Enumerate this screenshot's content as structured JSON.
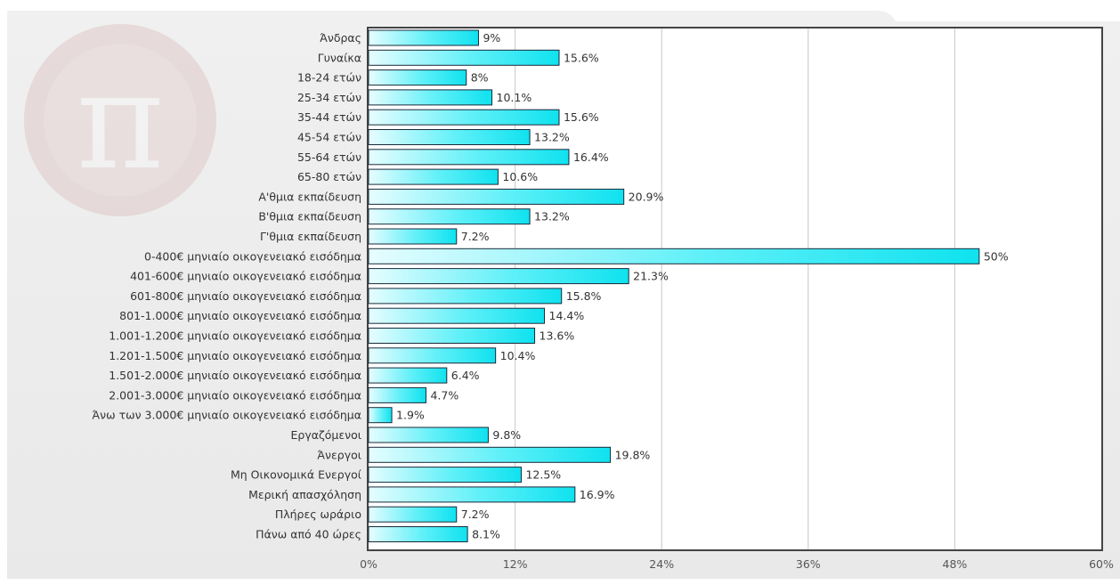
{
  "chart_data": {
    "type": "bar",
    "orientation": "horizontal",
    "title": "",
    "xlabel": "",
    "ylabel": "",
    "xlim": [
      0,
      60
    ],
    "ticks": [
      0,
      12,
      24,
      36,
      48,
      60
    ],
    "tick_suffix": "%",
    "grid": true,
    "bar_color": "#19e6f2",
    "bar_highlight": "#e4fdff",
    "categories": [
      "Άνδρας",
      "Γυναίκα",
      "18-24 ετών",
      "25-34 ετών",
      "35-44 ετών",
      "45-54 ετών",
      "55-64 ετών",
      "65-80 ετών",
      "Α'θμια εκπαίδευση",
      "Β'θμια εκπαίδευση",
      "Γ'θμια εκπαίδευση",
      "0-400€ μηνιαίο οικογενειακό εισόδημα",
      "401-600€ μηνιαίο οικογενειακό εισόδημα",
      "601-800€ μηνιαίο οικογενειακό εισόδημα",
      "801-1.000€ μηνιαίο οικογενειακό εισόδημα",
      "1.001-1.200€ μηνιαίο οικογενειακό εισόδημα",
      "1.201-1.500€ μηνιαίο οικογενειακό εισόδημα",
      "1.501-2.000€ μηνιαίο οικογενειακό εισόδημα",
      "2.001-3.000€ μηνιαίο οικογενειακό εισόδημα",
      "Άνω των 3.000€ μηνιαίο οικογενειακό εισόδημα",
      "Εργαζόμενοι",
      "Άνεργοι",
      "Μη Οικονομικά Ενεργοί",
      "Μερική απασχόληση",
      "Πλήρες ωράριο",
      "Πάνω από 40 ώρες"
    ],
    "values": [
      9,
      15.6,
      8,
      10.1,
      15.6,
      13.2,
      16.4,
      10.6,
      20.9,
      13.2,
      7.2,
      50,
      21.3,
      15.8,
      14.4,
      13.6,
      10.4,
      6.4,
      4.7,
      1.9,
      9.8,
      19.8,
      12.5,
      16.9,
      7.2,
      8.1
    ],
    "value_labels": [
      "9%",
      "15.6%",
      "8%",
      "10.1%",
      "15.6%",
      "13.2%",
      "16.4%",
      "10.6%",
      "20.9%",
      "13.2%",
      "7.2%",
      "50%",
      "21.3%",
      "15.8%",
      "14.4%",
      "13.6%",
      "10.4%",
      "6.4%",
      "4.7%",
      "1.9%",
      "9.8%",
      "19.8%",
      "12.5%",
      "16.9%",
      "7.2%",
      "8.1%"
    ]
  }
}
